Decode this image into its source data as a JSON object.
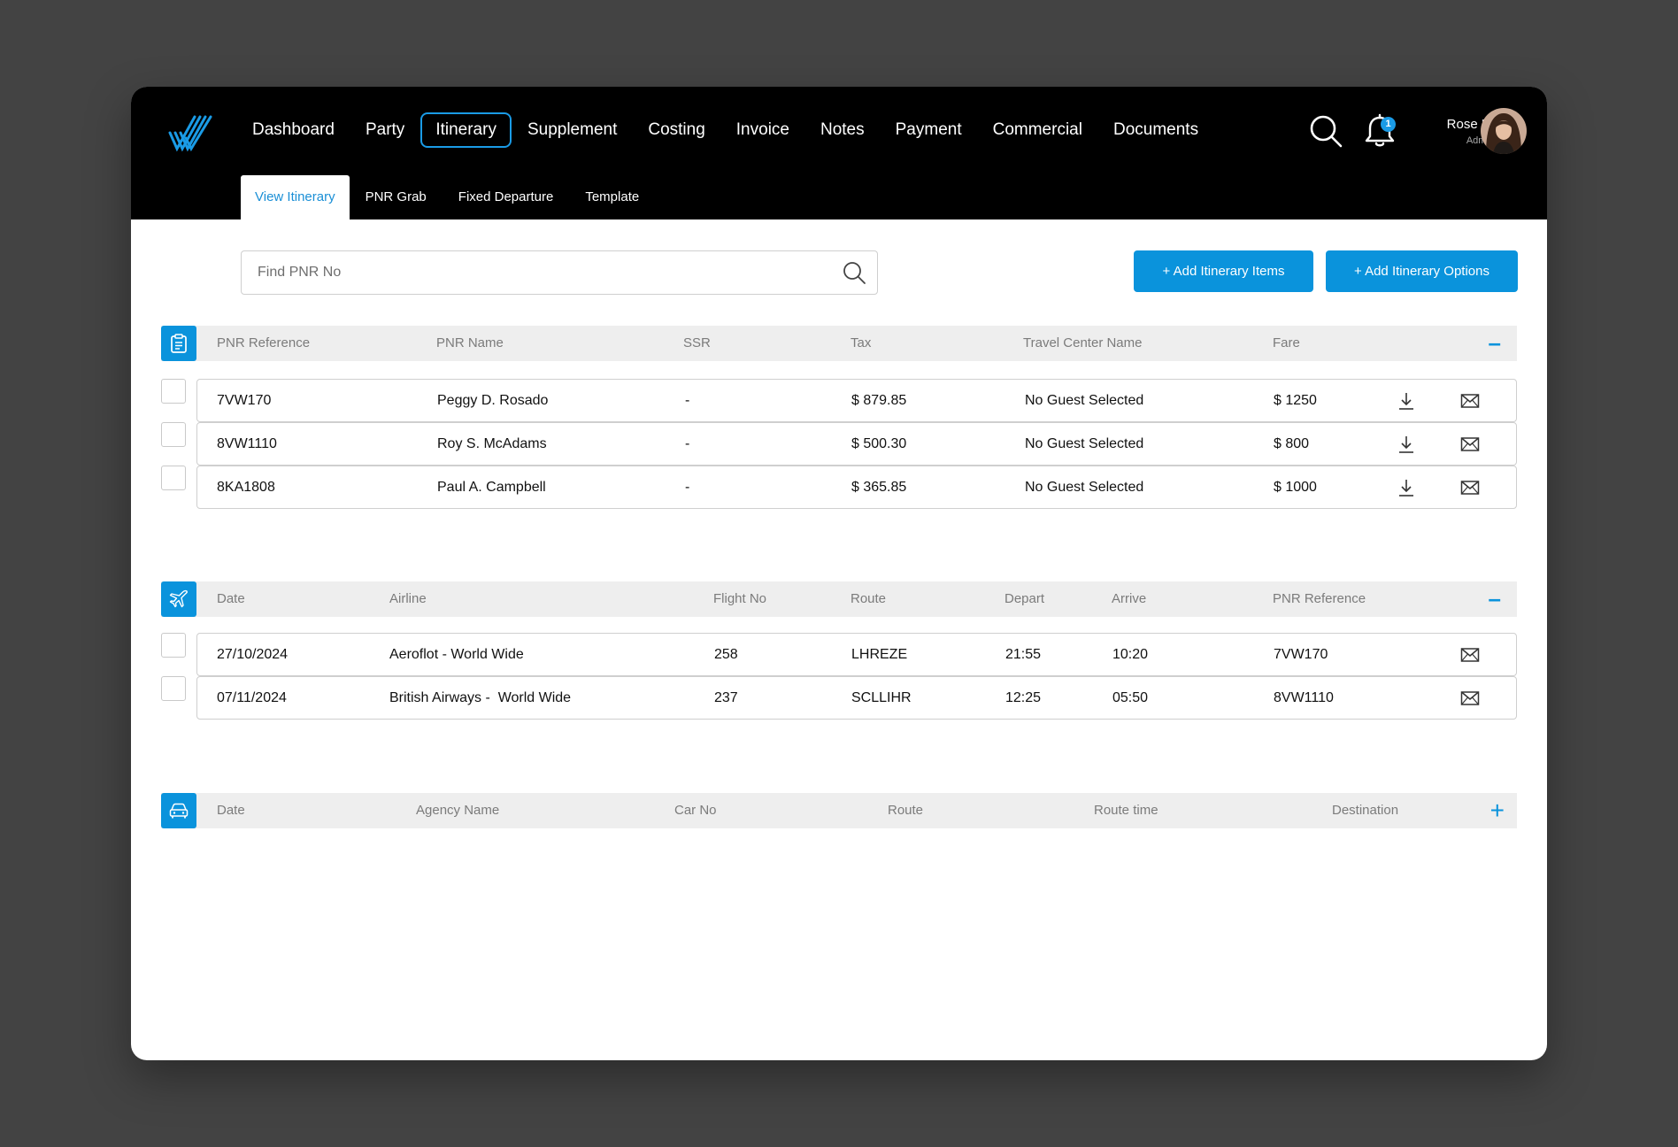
{
  "nav": {
    "items": [
      "Dashboard",
      "Party",
      "Itinerary",
      "Supplement",
      "Costing",
      "Invoice",
      "Notes",
      "Payment",
      "Commercial",
      "Documents"
    ],
    "active": "Itinerary"
  },
  "notifications": {
    "count": "1"
  },
  "user": {
    "name": "Rose B.",
    "role": "Admin"
  },
  "subnav": {
    "tabs": [
      "View Itinerary",
      "PNR Grab",
      "Fixed Departure",
      "Template"
    ],
    "active": "View Itinerary"
  },
  "search": {
    "placeholder": "Find PNR No",
    "value": ""
  },
  "actions": {
    "add_items": "+ Add Itinerary Items",
    "add_options": "+ Add Itinerary Options"
  },
  "pnr_table": {
    "headers": [
      "PNR Reference",
      "PNR Name",
      "SSR",
      "Tax",
      "Travel Center Name",
      "Fare"
    ],
    "toggle": "–",
    "rows": [
      [
        "7VW170",
        "Peggy D. Rosado",
        "-",
        "$ 879.85",
        "No Guest Selected",
        "$ 1250"
      ],
      [
        "8VW1110",
        "Roy S. McAdams",
        "-",
        "$ 500.30",
        "No Guest Selected",
        "$ 800"
      ],
      [
        "8KA1808",
        "Paul A. Campbell",
        "-",
        "$ 365.85",
        "No Guest Selected",
        "$ 1000"
      ]
    ]
  },
  "flight_table": {
    "headers": [
      "Date",
      "Airline",
      "Flight No",
      "Route",
      "Depart",
      "Arrive",
      "PNR Reference"
    ],
    "toggle": "–",
    "rows": [
      [
        "27/10/2024",
        "Aeroflot - World Wide",
        "258",
        "LHREZE",
        "21:55",
        "10:20",
        "7VW170"
      ],
      [
        "07/11/2024",
        "British Airways -  World Wide",
        "237",
        "SCLLIHR",
        "12:25",
        "05:50",
        "8VW1110"
      ]
    ]
  },
  "car_table": {
    "headers": [
      "Date",
      "Agency Name",
      "Car No",
      "Route",
      "Route time",
      "Destination"
    ],
    "toggle": "+"
  },
  "icons": {
    "pnr_section": "clipboard-icon",
    "flight_section": "airplane-icon",
    "car_section": "car-icon",
    "row_download": "download-icon",
    "row_mail": "mail-icon"
  },
  "colors": {
    "accent": "#0a93dc",
    "topbar": "#000000",
    "backdrop": "#434343"
  }
}
